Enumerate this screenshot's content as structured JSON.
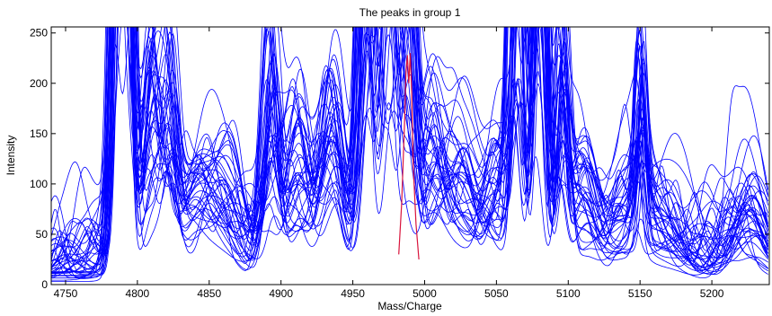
{
  "chart_data": {
    "type": "line",
    "title": "The peaks in group 1",
    "xlabel": "Mass/Charge",
    "ylabel": "Intensity",
    "xlim": [
      4740,
      5240
    ],
    "ylim": [
      0,
      256
    ],
    "xticks": [
      4750,
      4800,
      4850,
      4900,
      4950,
      5000,
      5050,
      5100,
      5150,
      5200
    ],
    "yticks": [
      0,
      50,
      100,
      150,
      200,
      250
    ],
    "grid": false,
    "legend": "none",
    "series_color": "#0000ff",
    "highlight_color": "#d9143c",
    "num_spectra": 40,
    "peaks": [
      {
        "center": 4787,
        "height": 600,
        "width": 4
      },
      {
        "center": 4793,
        "height": 450,
        "width": 4
      },
      {
        "center": 4810,
        "height": 200,
        "width": 6
      },
      {
        "center": 4822,
        "height": 170,
        "width": 5
      },
      {
        "center": 4840,
        "height": 90,
        "width": 10
      },
      {
        "center": 4860,
        "height": 85,
        "width": 10
      },
      {
        "center": 4893,
        "height": 220,
        "width": 5
      },
      {
        "center": 4912,
        "height": 130,
        "width": 8
      },
      {
        "center": 4935,
        "height": 180,
        "width": 8
      },
      {
        "center": 4960,
        "height": 600,
        "width": 5
      },
      {
        "center": 4975,
        "height": 600,
        "width": 5
      },
      {
        "center": 4988,
        "height": 350,
        "width": 5
      },
      {
        "center": 5005,
        "height": 160,
        "width": 8
      },
      {
        "center": 5025,
        "height": 110,
        "width": 10
      },
      {
        "center": 5050,
        "height": 110,
        "width": 8
      },
      {
        "center": 5065,
        "height": 600,
        "width": 4
      },
      {
        "center": 5080,
        "height": 600,
        "width": 4
      },
      {
        "center": 5096,
        "height": 240,
        "width": 4
      },
      {
        "center": 5110,
        "height": 100,
        "width": 8
      },
      {
        "center": 5138,
        "height": 60,
        "width": 12
      },
      {
        "center": 5150,
        "height": 150,
        "width": 3
      },
      {
        "center": 5165,
        "height": 50,
        "width": 14
      },
      {
        "center": 5228,
        "height": 60,
        "width": 10
      }
    ],
    "highlight_series": {
      "x": [
        4982,
        4984,
        4986,
        4987,
        4988,
        4989,
        4990,
        4991,
        4992,
        4994,
        4996
      ],
      "y": [
        30,
        80,
        160,
        210,
        228,
        200,
        230,
        190,
        120,
        60,
        25
      ]
    }
  }
}
